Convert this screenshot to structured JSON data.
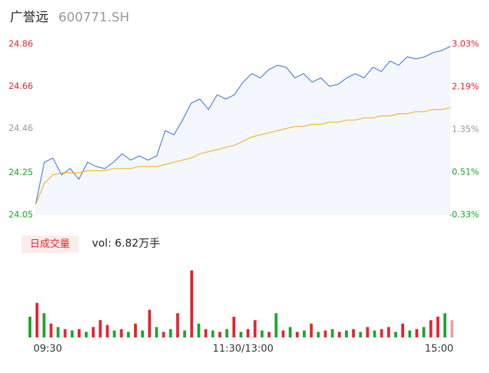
{
  "chart_data": [
    {
      "type": "line",
      "title": "广誉远",
      "subtitle": "600771.SH",
      "xlim": [
        0,
        240
      ],
      "xticks": [
        {
          "value": 0,
          "label": "09:30"
        },
        {
          "value": 120,
          "label": "11:30/13:00"
        },
        {
          "value": 240,
          "label": "15:00"
        }
      ],
      "ylim": [
        24.05,
        24.86
      ],
      "yticks": [
        {
          "value": 24.05,
          "label": "24.05"
        },
        24.25,
        24.46,
        24.66,
        24.86
      ],
      "ytick_colors": [
        "#1aa52a",
        "#1aa52a",
        "#999999",
        "#e8212f",
        "#e8212f"
      ],
      "y2lim": [
        -0.33,
        3.03
      ],
      "y2ticks": [
        {
          "value": -0.33,
          "label": "-0.33%"
        },
        {
          "value": 0.51,
          "label": "0.51%"
        },
        {
          "value": 1.35,
          "label": "1.35%"
        },
        {
          "value": 2.19,
          "label": "2.19%"
        },
        {
          "value": 3.03,
          "label": "3.03%"
        }
      ],
      "y2tick_colors": [
        "#1aa52a",
        "#1aa52a",
        "#999999",
        "#e8212f",
        "#e8212f"
      ],
      "x": [
        0,
        5,
        10,
        15,
        20,
        25,
        30,
        35,
        40,
        45,
        50,
        55,
        60,
        65,
        70,
        75,
        80,
        85,
        90,
        95,
        100,
        105,
        110,
        115,
        120,
        125,
        130,
        135,
        140,
        145,
        150,
        155,
        160,
        165,
        170,
        175,
        180,
        185,
        190,
        195,
        200,
        205,
        210,
        215,
        220,
        225,
        230,
        235,
        240
      ],
      "series": [
        {
          "color": "#4a7de0",
          "area": true,
          "values": [
            24.1,
            24.3,
            24.32,
            24.24,
            24.27,
            24.22,
            24.3,
            24.28,
            24.27,
            24.3,
            24.34,
            24.31,
            24.33,
            24.31,
            24.33,
            24.45,
            24.43,
            24.5,
            24.58,
            24.6,
            24.55,
            24.62,
            24.6,
            24.62,
            24.68,
            24.72,
            24.7,
            24.74,
            24.76,
            24.75,
            24.7,
            24.72,
            24.68,
            24.7,
            24.66,
            24.67,
            24.7,
            24.72,
            24.7,
            24.75,
            24.73,
            24.78,
            24.76,
            24.8,
            24.79,
            24.8,
            24.82,
            24.83,
            24.85
          ]
        },
        {
          "color": "#f0b429",
          "values": [
            24.1,
            24.2,
            24.24,
            24.25,
            24.25,
            24.25,
            24.26,
            24.26,
            24.26,
            24.27,
            24.27,
            24.27,
            24.28,
            24.28,
            24.28,
            24.29,
            24.3,
            24.31,
            24.32,
            24.34,
            24.35,
            24.36,
            24.37,
            24.38,
            24.4,
            24.42,
            24.43,
            24.44,
            24.45,
            24.46,
            24.47,
            24.47,
            24.48,
            24.48,
            24.49,
            24.49,
            24.5,
            24.5,
            24.51,
            24.51,
            24.52,
            24.52,
            24.53,
            24.53,
            24.54,
            24.54,
            24.55,
            24.55,
            24.56
          ]
        }
      ]
    },
    {
      "type": "bar",
      "title": "日成交量",
      "subtitle": "vol: 6.82万手",
      "xlim": [
        0,
        240
      ],
      "ylim": [
        0,
        100
      ],
      "x": [
        0,
        4,
        8,
        12,
        16,
        20,
        24,
        28,
        32,
        36,
        40,
        44,
        48,
        52,
        56,
        60,
        64,
        68,
        72,
        76,
        80,
        84,
        88,
        92,
        96,
        100,
        104,
        108,
        112,
        116,
        120,
        124,
        128,
        132,
        136,
        140,
        144,
        148,
        152,
        156,
        160,
        164,
        168,
        172,
        176,
        180,
        184,
        188,
        192,
        196,
        200,
        204,
        208,
        212,
        216,
        220,
        224,
        228,
        232,
        236,
        240
      ],
      "values": [
        30,
        50,
        35,
        20,
        15,
        12,
        10,
        12,
        8,
        15,
        25,
        18,
        10,
        12,
        8,
        20,
        10,
        40,
        15,
        8,
        12,
        35,
        10,
        97,
        20,
        12,
        10,
        8,
        12,
        30,
        8,
        12,
        25,
        10,
        8,
        35,
        10,
        15,
        8,
        10,
        20,
        8,
        10,
        12,
        8,
        10,
        12,
        8,
        15,
        10,
        12,
        15,
        8,
        20,
        10,
        12,
        15,
        25,
        30,
        35,
        25
      ],
      "colors": [
        "#1aa52a",
        "#e8212f",
        "#1aa52a",
        "#e8212f",
        "#1aa52a",
        "#e8212f",
        "#1aa52a",
        "#e8212f",
        "#1aa52a",
        "#e8212f",
        "#e8212f",
        "#e8212f",
        "#1aa52a",
        "#e8212f",
        "#1aa52a",
        "#e8212f",
        "#1aa52a",
        "#e8212f",
        "#1aa52a",
        "#e8212f",
        "#1aa52a",
        "#e8212f",
        "#1aa52a",
        "#e8212f",
        "#1aa52a",
        "#e8212f",
        "#1aa52a",
        "#e8212f",
        "#1aa52a",
        "#e8212f",
        "#1aa52a",
        "#e8212f",
        "#e8212f",
        "#1aa52a",
        "#e8212f",
        "#1aa52a",
        "#e8212f",
        "#1aa52a",
        "#e8212f",
        "#1aa52a",
        "#e8212f",
        "#1aa52a",
        "#e8212f",
        "#1aa52a",
        "#e8212f",
        "#1aa52a",
        "#e8212f",
        "#1aa52a",
        "#e8212f",
        "#1aa52a",
        "#e8212f",
        "#e8212f",
        "#1aa52a",
        "#e8212f",
        "#1aa52a",
        "#e8212f",
        "#1aa52a",
        "#e8212f",
        "#e8212f",
        "#1aa52a",
        "#f4a0a0"
      ]
    }
  ]
}
